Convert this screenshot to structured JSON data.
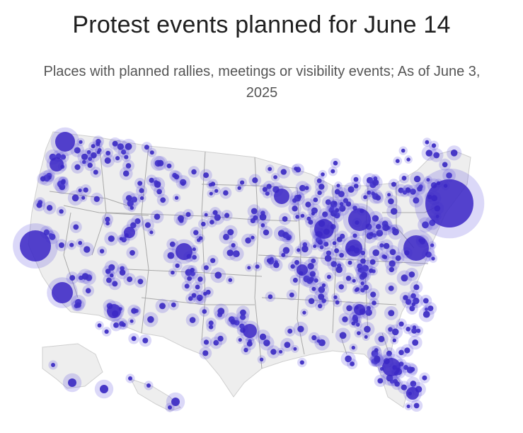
{
  "title": "Protest events planned for June 14",
  "subtitle": "Places with planned rallies, meetings or visibility events; As of June 3, 2025",
  "colors": {
    "marker": "#3f2fc4",
    "halo": "#5b4ee0",
    "land": "#eeeeee",
    "borders": "#a9a9a9"
  }
}
